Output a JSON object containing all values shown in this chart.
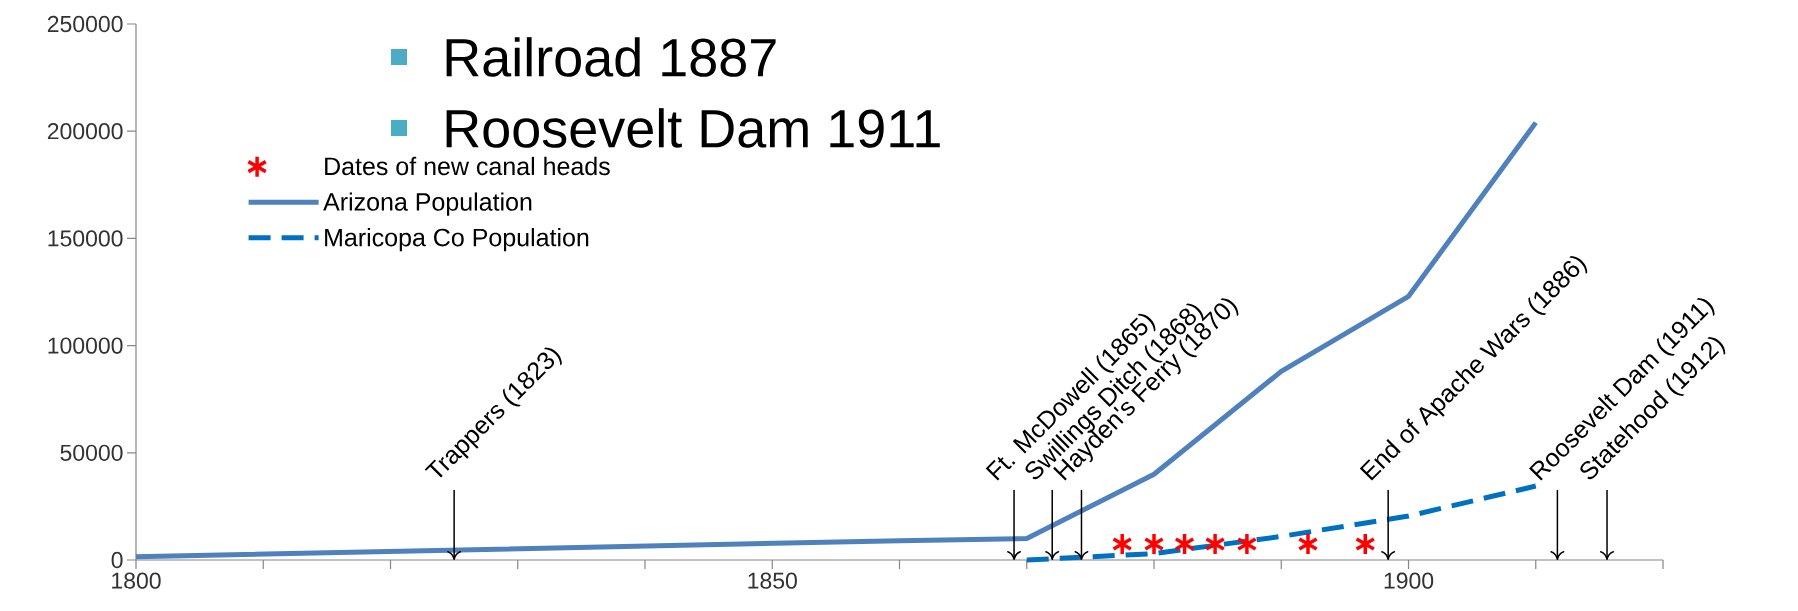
{
  "chart_data": {
    "type": "line",
    "series": [
      {
        "name": "Dates of new canal heads",
        "type": "scatter",
        "marker": "cross",
        "color": "#ff0000",
        "x": [
          1877.5,
          1880,
          1882.4,
          1884.8,
          1887.3,
          1892.1,
          1896.6
        ],
        "values": [
          7500,
          7500,
          7500,
          7500,
          7500,
          7500,
          7500
        ]
      },
      {
        "name": "Arizona Population",
        "line_style": "solid",
        "color": "#4f81bd",
        "x": [
          1800,
          1860,
          1870,
          1880,
          1890,
          1900,
          1910
        ],
        "values": [
          1500,
          9000,
          10000,
          40000,
          88000,
          123000,
          204000
        ]
      },
      {
        "name": "Maricopa Co Population",
        "line_style": "dashed",
        "color": "#0070c0",
        "x": [
          1870,
          1880,
          1890,
          1900,
          1910
        ],
        "values": [
          0,
          3000,
          11000,
          20500,
          34500
        ]
      }
    ],
    "xlim": [
      1800,
      1920
    ],
    "xticks": [
      1800,
      {
        "value": 1810,
        "label": null
      },
      {
        "value": 1820,
        "label": null
      },
      {
        "value": 1830,
        "label": null
      },
      {
        "value": 1840,
        "label": null
      },
      1850,
      {
        "value": 1860,
        "label": null
      },
      {
        "value": 1870,
        "label": null
      },
      {
        "value": 1880,
        "label": null
      },
      {
        "value": 1890,
        "label": null
      },
      1900,
      {
        "value": 1910,
        "label": null
      },
      {
        "value": 1920,
        "label": null
      }
    ],
    "ylim": [
      0,
      250000
    ],
    "yticks": [
      0,
      50000,
      100000,
      150000,
      200000,
      250000
    ],
    "legend": "top left",
    "grid": false,
    "annotations": [
      "Railroad 1887",
      "Roosevelt Dam 1911"
    ],
    "ref_lines": [
      {
        "axis": "x",
        "value": 1825,
        "label": "Trappers (1823)"
      },
      {
        "axis": "x",
        "value": 1869,
        "label": "Ft. McDowell (1865)"
      },
      {
        "axis": "x",
        "value": 1872,
        "label": "Swillings Ditch (1868)"
      },
      {
        "axis": "x",
        "value": 1874.3,
        "label": "Hayden's Ferry (1870)"
      },
      {
        "axis": "x",
        "value": 1898.4,
        "label": "End of Apache Wars (1886)"
      },
      {
        "axis": "x",
        "value": 1911.7,
        "label": "Roosevelt Dam (1911)"
      },
      {
        "axis": "x",
        "value": 1915.6,
        "label": "Statehood (1912)"
      }
    ]
  }
}
